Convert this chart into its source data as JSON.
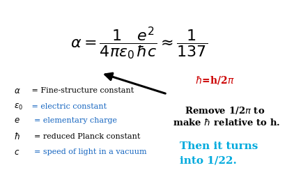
{
  "bg_color": "#ffffff",
  "formula_color": "#000000",
  "blue_color": "#1565C0",
  "red_color": "#CC0000",
  "cyan_color": "#00AADD",
  "main_formula": "$\\alpha = \\dfrac{1}{4\\pi\\varepsilon_0} \\dfrac{e^2}{\\hbar c} \\approx \\dfrac{1}{137}$",
  "hbar_label_r": "$\\hbar$",
  "hbar_label_b": "=h/2$\\pi$",
  "remove_line1": "Remove 1/2$\\pi$ to",
  "remove_line2": "make $\\hbar$ relative to h.",
  "then_line1": "Then it turns",
  "then_line2": "into 1/22.",
  "legend_items": [
    {
      "sym": "$\\alpha$",
      "eq": " = Fine-structure constant",
      "sym_color": "#000000",
      "eq_color": "#000000"
    },
    {
      "sym": "$\\varepsilon_0$",
      "eq": " = electric constant",
      "sym_color": "#000000",
      "eq_color": "#1565C0"
    },
    {
      "sym": "$e$",
      "eq": "  = elementary charge",
      "sym_color": "#000000",
      "eq_color": "#1565C0"
    },
    {
      "sym": "$\\hbar$",
      "eq": "  = reduced Planck constant",
      "sym_color": "#000000",
      "eq_color": "#000000"
    },
    {
      "sym": "$c$",
      "eq": "  = speed of light in a vacuum",
      "sym_color": "#000000",
      "eq_color": "#1565C0"
    }
  ]
}
